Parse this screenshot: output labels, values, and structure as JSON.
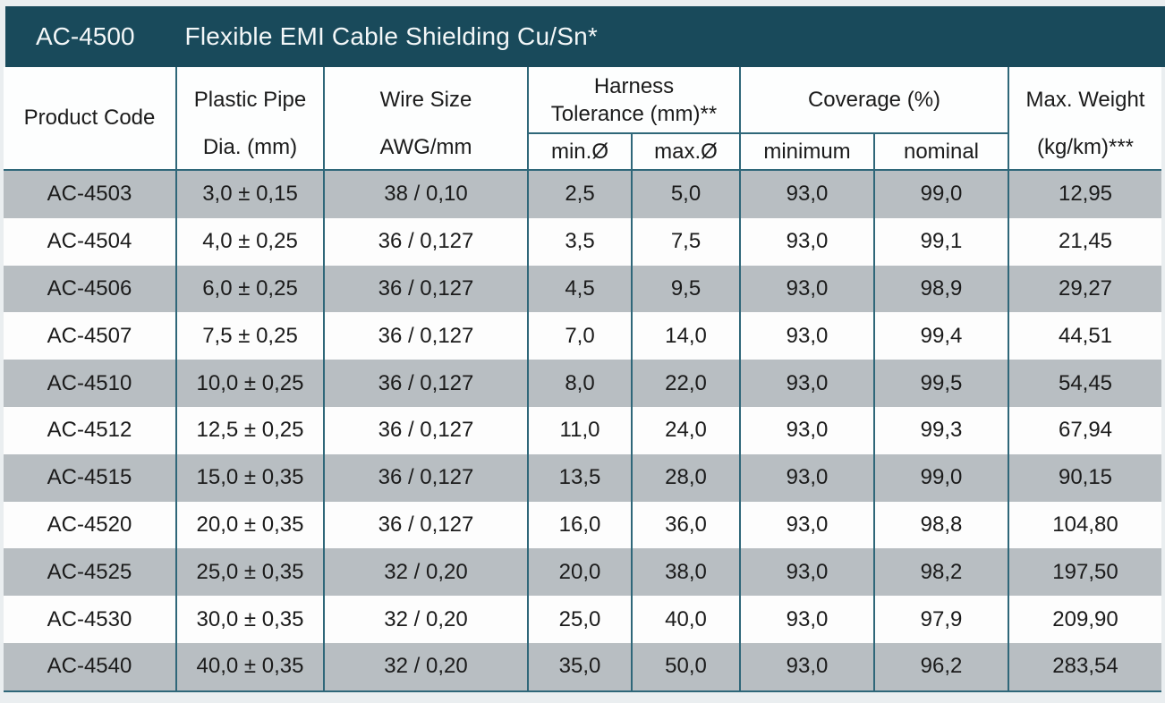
{
  "title_bar": {
    "product_code": "AC-4500",
    "title": "Flexible EMI Cable Shielding Cu/Sn*"
  },
  "columns": {
    "product_code": "Product Code",
    "plastic_pipe_line1": "Plastic Pipe",
    "plastic_pipe_line2": "Dia. (mm)",
    "wire_size_line1": "Wire Size",
    "wire_size_line2": "AWG/mm",
    "harness_line1": "Harness",
    "harness_line2": "Tolerance (mm)**",
    "harness_sub_min": "min.Ø",
    "harness_sub_max": "max.Ø",
    "coverage": "Coverage (%)",
    "coverage_sub_min": "minimum",
    "coverage_sub_nom": "nominal",
    "max_weight_line1": "Max. Weight",
    "max_weight_line2": "(kg/km)***"
  },
  "rows": [
    {
      "product_code": "AC-4503",
      "pipe_dia": "3,0 ± 0,15",
      "wire_size": "38 / 0,10",
      "harness_min": "2,5",
      "harness_max": "5,0",
      "coverage_min": "93,0",
      "coverage_nom": "99,0",
      "max_weight": "12,95"
    },
    {
      "product_code": "AC-4504",
      "pipe_dia": "4,0 ± 0,25",
      "wire_size": "36 / 0,127",
      "harness_min": "3,5",
      "harness_max": "7,5",
      "coverage_min": "93,0",
      "coverage_nom": "99,1",
      "max_weight": "21,45"
    },
    {
      "product_code": "AC-4506",
      "pipe_dia": "6,0 ± 0,25",
      "wire_size": "36 / 0,127",
      "harness_min": "4,5",
      "harness_max": "9,5",
      "coverage_min": "93,0",
      "coverage_nom": "98,9",
      "max_weight": "29,27"
    },
    {
      "product_code": "AC-4507",
      "pipe_dia": "7,5 ± 0,25",
      "wire_size": "36 / 0,127",
      "harness_min": "7,0",
      "harness_max": "14,0",
      "coverage_min": "93,0",
      "coverage_nom": "99,4",
      "max_weight": "44,51"
    },
    {
      "product_code": "AC-4510",
      "pipe_dia": "10,0 ± 0,25",
      "wire_size": "36 / 0,127",
      "harness_min": "8,0",
      "harness_max": "22,0",
      "coverage_min": "93,0",
      "coverage_nom": "99,5",
      "max_weight": "54,45"
    },
    {
      "product_code": "AC-4512",
      "pipe_dia": "12,5 ± 0,25",
      "wire_size": "36 / 0,127",
      "harness_min": "11,0",
      "harness_max": "24,0",
      "coverage_min": "93,0",
      "coverage_nom": "99,3",
      "max_weight": "67,94"
    },
    {
      "product_code": "AC-4515",
      "pipe_dia": "15,0 ± 0,35",
      "wire_size": "36 / 0,127",
      "harness_min": "13,5",
      "harness_max": "28,0",
      "coverage_min": "93,0",
      "coverage_nom": "99,0",
      "max_weight": "90,15"
    },
    {
      "product_code": "AC-4520",
      "pipe_dia": "20,0 ± 0,35",
      "wire_size": "36 / 0,127",
      "harness_min": "16,0",
      "harness_max": "36,0",
      "coverage_min": "93,0",
      "coverage_nom": "98,8",
      "max_weight": "104,80"
    },
    {
      "product_code": "AC-4525",
      "pipe_dia": "25,0 ± 0,35",
      "wire_size": "32 / 0,20",
      "harness_min": "20,0",
      "harness_max": "38,0",
      "coverage_min": "93,0",
      "coverage_nom": "98,2",
      "max_weight": "197,50"
    },
    {
      "product_code": "AC-4530",
      "pipe_dia": "30,0 ± 0,35",
      "wire_size": "32 / 0,20",
      "harness_min": "25,0",
      "harness_max": "40,0",
      "coverage_min": "93,0",
      "coverage_nom": "97,9",
      "max_weight": "209,90"
    },
    {
      "product_code": "AC-4540",
      "pipe_dia": "40,0 ± 0,35",
      "wire_size": "32 / 0,20",
      "harness_min": "35,0",
      "harness_max": "50,0",
      "coverage_min": "93,0",
      "coverage_nom": "96,2",
      "max_weight": "283,54"
    }
  ],
  "colors": {
    "page_bg": "#eaeef0",
    "header_bg": "#194a5b",
    "border": "#2f6779",
    "row_gray": "#b8bec2",
    "row_white": "#fdfdfd",
    "text": "#1b1b1b",
    "title_text": "#f3f7f8"
  }
}
